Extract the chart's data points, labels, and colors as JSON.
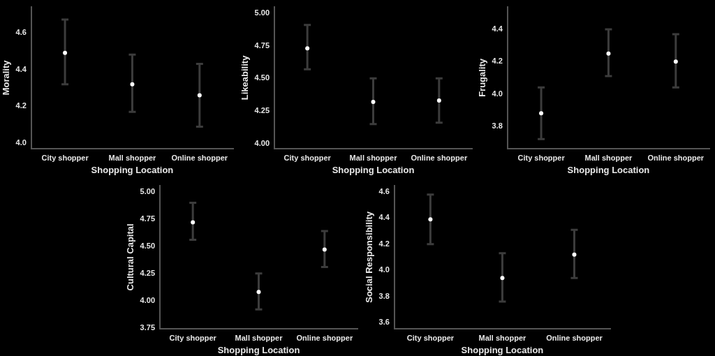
{
  "chart_data": [
    {
      "type": "scatter",
      "xlabel": "Shopping Location",
      "ylabel": "Morality",
      "categories": [
        "City shopper",
        "Mall shopper",
        "Online shopper"
      ],
      "series": [
        {
          "color": "#ffffff",
          "values": [
            4.49,
            4.32,
            4.26
          ],
          "errors": [
            [
              4.32,
              4.67
            ],
            [
              4.17,
              4.48
            ],
            [
              4.09,
              4.43
            ]
          ]
        }
      ],
      "ylim": [
        3.97,
        4.74
      ],
      "yticks": [
        {
          "value": 4,
          "label": "4.0"
        },
        4.2,
        4.4,
        4.6
      ]
    },
    {
      "type": "scatter",
      "xlabel": "Shopping Location",
      "ylabel": "Likeability",
      "categories": [
        "City shopper",
        "Mall shopper",
        "Online shopper"
      ],
      "series": [
        {
          "color": "#ffffff",
          "values": [
            4.73,
            4.32,
            4.33
          ],
          "errors": [
            [
              4.57,
              4.91
            ],
            [
              4.15,
              4.5
            ],
            [
              4.16,
              4.5
            ]
          ]
        }
      ],
      "ylim": [
        3.96,
        5.05
      ],
      "yticks": [
        {
          "value": 4,
          "label": "4.00"
        },
        4.25,
        {
          "value": 4.5,
          "label": "4.50"
        },
        4.75,
        {
          "value": 5,
          "label": "5.00"
        }
      ]
    },
    {
      "type": "scatter",
      "xlabel": "Shopping Location",
      "ylabel": "Frugality",
      "categories": [
        "City shopper",
        "Mall shopper",
        "Online shopper"
      ],
      "series": [
        {
          "color": "#ffffff",
          "values": [
            3.88,
            4.25,
            4.2
          ],
          "errors": [
            [
              3.72,
              4.04
            ],
            [
              4.11,
              4.4
            ],
            [
              4.04,
              4.37
            ]
          ]
        }
      ],
      "ylim": [
        3.66,
        4.54
      ],
      "yticks": [
        3.8,
        {
          "value": 4,
          "label": "4.0"
        },
        4.2,
        4.4
      ]
    },
    {
      "type": "scatter",
      "xlabel": "Shopping Location",
      "ylabel": "Cultural Capital",
      "categories": [
        "City shopper",
        "Mall shopper",
        "Online shopper"
      ],
      "series": [
        {
          "color": "#ffffff",
          "values": [
            4.72,
            4.08,
            4.47
          ],
          "errors": [
            [
              4.56,
              4.9
            ],
            [
              3.92,
              4.25
            ],
            [
              4.31,
              4.64
            ]
          ]
        }
      ],
      "ylim": [
        3.74,
        5.06
      ],
      "yticks": [
        3.75,
        {
          "value": 4,
          "label": "4.00"
        },
        4.25,
        {
          "value": 4.5,
          "label": "4.50"
        },
        4.75,
        {
          "value": 5,
          "label": "5.00"
        }
      ]
    },
    {
      "type": "scatter",
      "xlabel": "Shopping Location",
      "ylabel": "Social Responsibility",
      "categories": [
        "City shopper",
        "Mall shopper",
        "Online shopper"
      ],
      "series": [
        {
          "color": "#ffffff",
          "values": [
            4.39,
            3.94,
            4.12
          ],
          "errors": [
            [
              4.2,
              4.58
            ],
            [
              3.76,
              4.13
            ],
            [
              3.94,
              4.31
            ]
          ]
        }
      ],
      "ylim": [
        3.55,
        4.65
      ],
      "yticks": [
        3.6,
        3.8,
        {
          "value": 4,
          "label": "4.0"
        },
        4.2,
        4.4,
        4.6
      ]
    }
  ]
}
